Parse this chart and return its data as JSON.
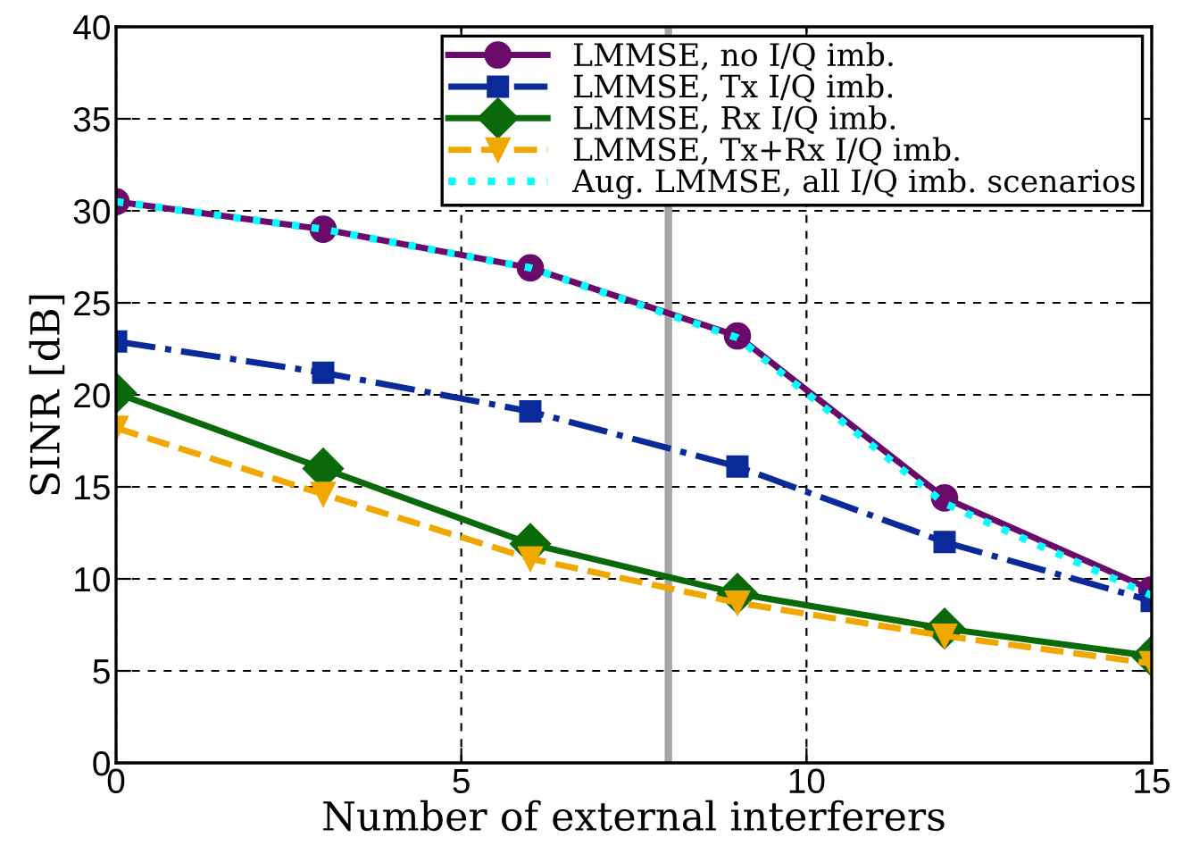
{
  "chart_data": {
    "type": "line",
    "xlabel": "Number of external interferers",
    "ylabel": "SINR [dB]",
    "x": [
      0,
      3,
      6,
      9,
      12,
      15
    ],
    "series": [
      {
        "name": "LMMSE, no I/Q imb.",
        "color": "#6a0a6a",
        "marker": "circle",
        "line_style": "solid",
        "values": [
          30.5,
          29.0,
          26.9,
          23.2,
          14.4,
          9.4
        ]
      },
      {
        "name": "LMMSE, Tx I/Q imb.",
        "color": "#0a2a9a",
        "marker": "square",
        "line_style": "dashdot",
        "values": [
          22.9,
          21.2,
          19.1,
          16.1,
          12.0,
          8.8
        ]
      },
      {
        "name": "LMMSE, Rx I/Q imb.",
        "color": "#0a6a0a",
        "marker": "diamond",
        "line_style": "solid",
        "values": [
          20.1,
          16.0,
          11.9,
          9.2,
          7.3,
          5.8
        ]
      },
      {
        "name": "LMMSE, Tx+Rx I/Q imb.",
        "color": "#f0a800",
        "marker": "triangle",
        "line_style": "dashed",
        "values": [
          18.2,
          14.6,
          11.1,
          8.7,
          6.9,
          5.4
        ]
      },
      {
        "name": "Aug. LMMSE, all I/Q imb. scenarios",
        "color": "#00ffff",
        "marker": "none",
        "line_style": "dotted",
        "values": [
          30.5,
          29.0,
          26.9,
          23.1,
          14.1,
          9.1
        ]
      }
    ],
    "xlim": [
      0,
      15
    ],
    "xticks": [
      0,
      5,
      10,
      15
    ],
    "ylim": [
      0,
      40
    ],
    "yticks": [
      0,
      5,
      10,
      15,
      20,
      25,
      30,
      35,
      40
    ],
    "ref_lines": [
      {
        "axis": "x",
        "value": 8,
        "color": "#a6a6a6"
      }
    ],
    "grid": true,
    "legend": "top right"
  }
}
